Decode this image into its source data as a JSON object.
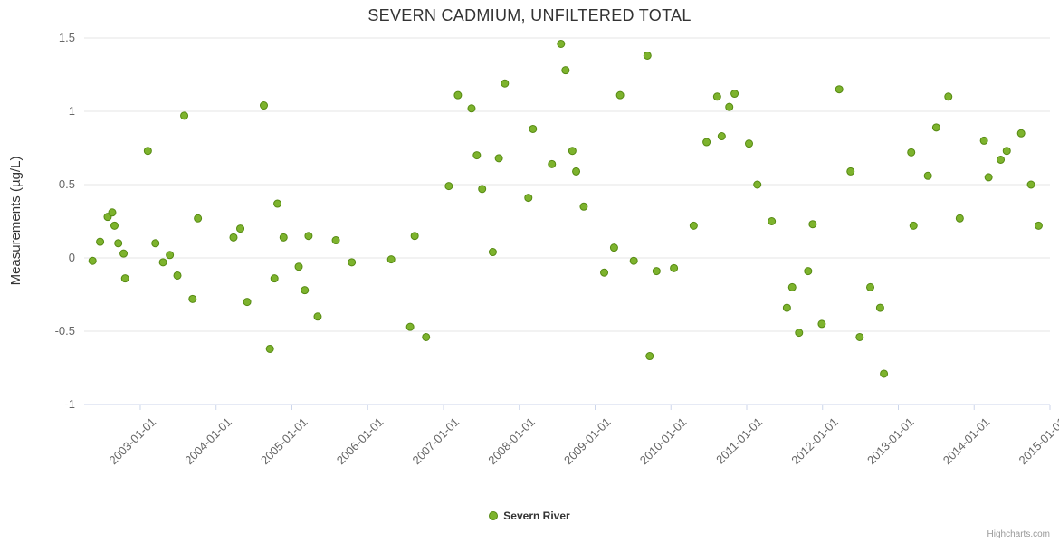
{
  "chart_data": {
    "type": "scatter",
    "title": "SEVERN CADMIUM, UNFILTERED TOTAL",
    "xlabel": "",
    "ylabel": "Measurements (µg/L)",
    "xlim": [
      2002.26,
      2015.0
    ],
    "ylim": [
      -1,
      1.5
    ],
    "grid": "horizontal-only",
    "legend_position": "bottom-center",
    "grid_color": "#e6e6e6",
    "axis_line_color": "#ccd6eb",
    "tick_label_color": "#666666",
    "title_color": "#333333",
    "yticks": [
      {
        "value": -1,
        "label": "-1"
      },
      {
        "value": -0.5,
        "label": "-0.5"
      },
      {
        "value": 0,
        "label": "0"
      },
      {
        "value": 0.5,
        "label": "0.5"
      },
      {
        "value": 1,
        "label": "1"
      },
      {
        "value": 1.5,
        "label": "1.5"
      }
    ],
    "xticks": [
      {
        "value": 2003,
        "label": "2003-01-01"
      },
      {
        "value": 2004,
        "label": "2004-01-01"
      },
      {
        "value": 2005,
        "label": "2005-01-01"
      },
      {
        "value": 2006,
        "label": "2006-01-01"
      },
      {
        "value": 2007,
        "label": "2007-01-01"
      },
      {
        "value": 2008,
        "label": "2008-01-01"
      },
      {
        "value": 2009,
        "label": "2009-01-01"
      },
      {
        "value": 2010,
        "label": "2010-01-01"
      },
      {
        "value": 2011,
        "label": "2011-01-01"
      },
      {
        "value": 2012,
        "label": "2012-01-01"
      },
      {
        "value": 2013,
        "label": "2013-01-01"
      },
      {
        "value": 2014,
        "label": "2014-01-01"
      },
      {
        "value": 2015,
        "label": "2015-01-01"
      }
    ],
    "series": [
      {
        "name": "Severn River",
        "color": "#7db32d",
        "marker_stroke": "#568a12",
        "data": [
          [
            2002.37,
            -0.02
          ],
          [
            2002.47,
            0.11
          ],
          [
            2002.57,
            0.28
          ],
          [
            2002.63,
            0.31
          ],
          [
            2002.66,
            0.22
          ],
          [
            2002.71,
            0.1
          ],
          [
            2002.78,
            0.03
          ],
          [
            2002.8,
            -0.14
          ],
          [
            2003.1,
            0.73
          ],
          [
            2003.2,
            0.1
          ],
          [
            2003.3,
            -0.03
          ],
          [
            2003.39,
            0.02
          ],
          [
            2003.49,
            -0.12
          ],
          [
            2003.58,
            0.97
          ],
          [
            2003.69,
            -0.28
          ],
          [
            2003.76,
            0.27
          ],
          [
            2004.23,
            0.14
          ],
          [
            2004.32,
            0.2
          ],
          [
            2004.41,
            -0.3
          ],
          [
            2004.63,
            1.04
          ],
          [
            2004.71,
            -0.62
          ],
          [
            2004.77,
            -0.14
          ],
          [
            2004.81,
            0.37
          ],
          [
            2004.89,
            0.14
          ],
          [
            2005.09,
            -0.06
          ],
          [
            2005.17,
            -0.22
          ],
          [
            2005.22,
            0.15
          ],
          [
            2005.34,
            -0.4
          ],
          [
            2005.58,
            0.12
          ],
          [
            2005.79,
            -0.03
          ],
          [
            2006.31,
            -0.01
          ],
          [
            2006.56,
            -0.47
          ],
          [
            2006.62,
            0.15
          ],
          [
            2006.77,
            -0.54
          ],
          [
            2007.07,
            0.49
          ],
          [
            2007.19,
            1.11
          ],
          [
            2007.37,
            1.02
          ],
          [
            2007.44,
            0.7
          ],
          [
            2007.51,
            0.47
          ],
          [
            2007.65,
            0.04
          ],
          [
            2007.73,
            0.68
          ],
          [
            2007.81,
            1.19
          ],
          [
            2008.12,
            0.41
          ],
          [
            2008.18,
            0.88
          ],
          [
            2008.43,
            0.64
          ],
          [
            2008.55,
            1.46
          ],
          [
            2008.61,
            1.28
          ],
          [
            2008.7,
            0.73
          ],
          [
            2008.75,
            0.59
          ],
          [
            2008.85,
            0.35
          ],
          [
            2009.12,
            -0.1
          ],
          [
            2009.25,
            0.07
          ],
          [
            2009.33,
            1.11
          ],
          [
            2009.51,
            -0.02
          ],
          [
            2009.69,
            1.38
          ],
          [
            2009.72,
            -0.67
          ],
          [
            2009.81,
            -0.09
          ],
          [
            2010.04,
            -0.07
          ],
          [
            2010.3,
            0.22
          ],
          [
            2010.47,
            0.79
          ],
          [
            2010.61,
            1.1
          ],
          [
            2010.67,
            0.83
          ],
          [
            2010.77,
            1.03
          ],
          [
            2010.84,
            1.12
          ],
          [
            2011.03,
            0.78
          ],
          [
            2011.14,
            0.5
          ],
          [
            2011.33,
            0.25
          ],
          [
            2011.53,
            -0.34
          ],
          [
            2011.6,
            -0.2
          ],
          [
            2011.69,
            -0.51
          ],
          [
            2011.81,
            -0.09
          ],
          [
            2011.87,
            0.23
          ],
          [
            2011.99,
            -0.45
          ],
          [
            2012.22,
            1.15
          ],
          [
            2012.37,
            0.59
          ],
          [
            2012.49,
            -0.54
          ],
          [
            2012.63,
            -0.2
          ],
          [
            2012.76,
            -0.34
          ],
          [
            2012.81,
            -0.79
          ],
          [
            2013.17,
            0.72
          ],
          [
            2013.2,
            0.22
          ],
          [
            2013.39,
            0.56
          ],
          [
            2013.5,
            0.89
          ],
          [
            2013.66,
            1.1
          ],
          [
            2013.81,
            0.27
          ],
          [
            2014.13,
            0.8
          ],
          [
            2014.19,
            0.55
          ],
          [
            2014.35,
            0.67
          ],
          [
            2014.43,
            0.73
          ],
          [
            2014.62,
            0.85
          ],
          [
            2014.75,
            0.5
          ],
          [
            2014.85,
            0.22
          ]
        ]
      }
    ]
  },
  "legend": {
    "series_label": "Severn River"
  },
  "credits": "Highcharts.com"
}
